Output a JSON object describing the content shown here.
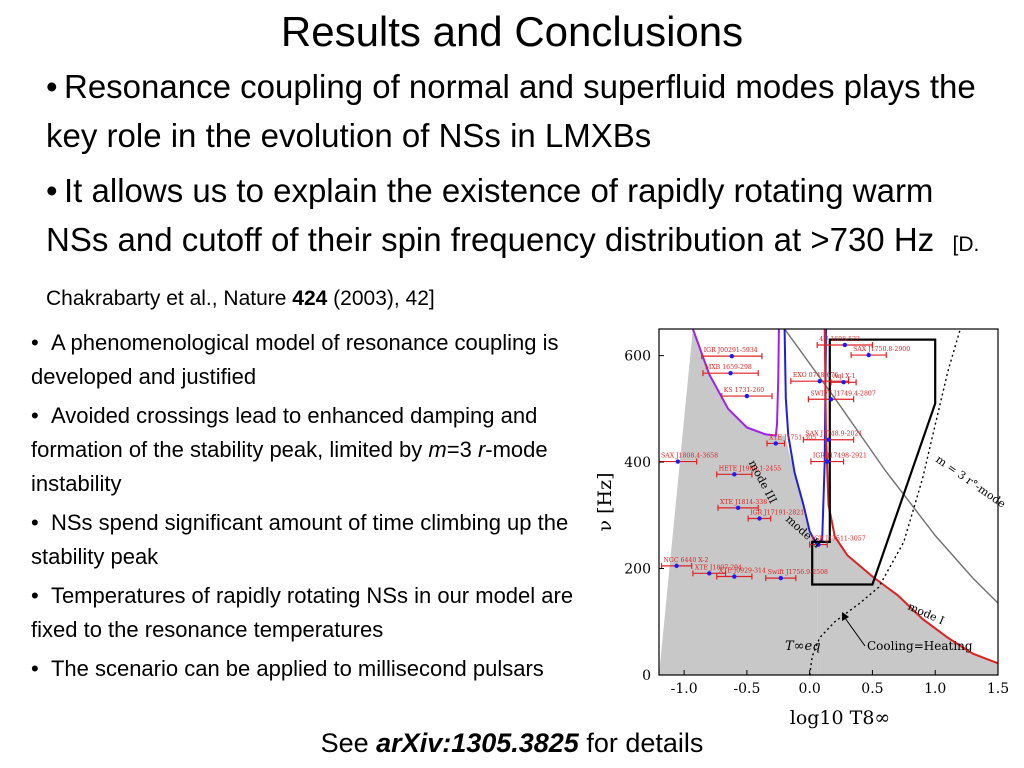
{
  "slide": {
    "title": "Results and Conclusions",
    "bullets": [
      {
        "text": "Resonance coupling of normal and superfluid modes plays the key role in the evolution of NSs in LMXBs"
      },
      {
        "text": "It allows us to explain the existence of rapidly rotating warm NSs and cutoff of their spin frequency distribution at >730 Hz",
        "cite_pre": "[D. Chakrabarty et al., Nature ",
        "cite_bold": "424",
        "cite_post": " (2003), 42]"
      }
    ],
    "sub_bullets": [
      {
        "text": "A phenomenological model of resonance coupling is developed and justified"
      },
      {
        "text": "Avoided crossings lead to enhanced damping and formation of the stability peak, limited by ",
        "it1": "m",
        "mid": "=3 ",
        "it2": "r",
        "post": "-mode instability"
      },
      {
        "text": "NSs spend significant amount of time climbing up the stability peak"
      },
      {
        "text": "Temperatures of rapidly rotating NSs in our model are fixed to the resonance temperatures"
      },
      {
        "text": "The scenario can be applied to millisecond pulsars"
      }
    ],
    "footer": {
      "pre": "See ",
      "link": "arXiv:1305.3825",
      "post": " for details"
    }
  },
  "chart_data": {
    "type": "scatter",
    "xlabel": "log10 T8∞",
    "ylabel": "ν [Hz]",
    "xlim": [
      -1.2,
      1.5
    ],
    "ylim": [
      0,
      650
    ],
    "xticks": [
      "-1.0",
      "-0.5",
      "0.0",
      "0.5",
      "1.0",
      "1.5"
    ],
    "xtick_values": [
      -1.0,
      -0.5,
      0.0,
      0.5,
      1.0,
      1.5
    ],
    "yticks": [
      "0",
      "200",
      "400",
      "600"
    ],
    "ytick_values": [
      0,
      200,
      400,
      600
    ],
    "annotations": {
      "mode_III": "mode III",
      "mode_II": "mode II",
      "mode_I": "mode I",
      "m3": "m = 3  r°-mode",
      "cooling": "Cooling=Heating",
      "teq": "T∞eq"
    },
    "sources": [
      {
        "name": "4U 1608-522",
        "x": 0.28,
        "xerr": 0.22,
        "y": 620
      },
      {
        "name": "SAX J1750.8-2900",
        "x": 0.47,
        "xerr": 0.14,
        "y": 601
      },
      {
        "name": "IGR J00291-5934",
        "x": -0.62,
        "xerr": 0.24,
        "y": 599
      },
      {
        "name": "MXB 1659-298",
        "x": -0.63,
        "xerr": 0.22,
        "y": 567
      },
      {
        "name": "EXO 0748-676",
        "x": 0.08,
        "xerr": 0.23,
        "y": 552
      },
      {
        "name": "Aql X-1",
        "x": 0.27,
        "xerr": 0.1,
        "y": 550
      },
      {
        "name": "KS 1731-260",
        "x": -0.5,
        "xerr": 0.2,
        "y": 524
      },
      {
        "name": "SWIFT J1749.4-2807",
        "x": 0.17,
        "xerr": 0.18,
        "y": 518
      },
      {
        "name": "XTE J1751-305",
        "x": -0.27,
        "xerr": 0.07,
        "y": 435
      },
      {
        "name": "SAX J1748.9-2021",
        "x": 0.15,
        "xerr": 0.2,
        "y": 442
      },
      {
        "name": "IGR J17498-2921",
        "x": 0.14,
        "xerr": 0.13,
        "y": 401
      },
      {
        "name": "SAX J1808.4-3658",
        "x": -1.05,
        "xerr": 0.15,
        "y": 401
      },
      {
        "name": "HETE J1900.1-2455",
        "x": -0.6,
        "xerr": 0.14,
        "y": 377
      },
      {
        "name": "XTE J1814-338",
        "x": -0.57,
        "xerr": 0.16,
        "y": 314
      },
      {
        "name": "IGR J17191-2821",
        "x": -0.4,
        "xerr": 0.09,
        "y": 294
      },
      {
        "name": "IGR J17511-3057",
        "x": 0.07,
        "xerr": 0.07,
        "y": 245
      },
      {
        "name": "NGC 6440 X-2",
        "x": -1.06,
        "xerr": 0.12,
        "y": 205
      },
      {
        "name": "XTE J1807-294",
        "x": -0.8,
        "xerr": 0.13,
        "y": 191
      },
      {
        "name": "XTE J0929-314",
        "x": -0.6,
        "xerr": 0.14,
        "y": 185
      },
      {
        "name": "Swift J1756.9-2508",
        "x": -0.23,
        "xerr": 0.12,
        "y": 182
      }
    ],
    "colors": {
      "points": "#1a1aff",
      "errbars": "#e02020",
      "shade": "#c8c8c8",
      "mode3": "#a020f0",
      "mode2": "#1f1fe0",
      "mode1": "#e02020",
      "m3": "#707070"
    }
  }
}
